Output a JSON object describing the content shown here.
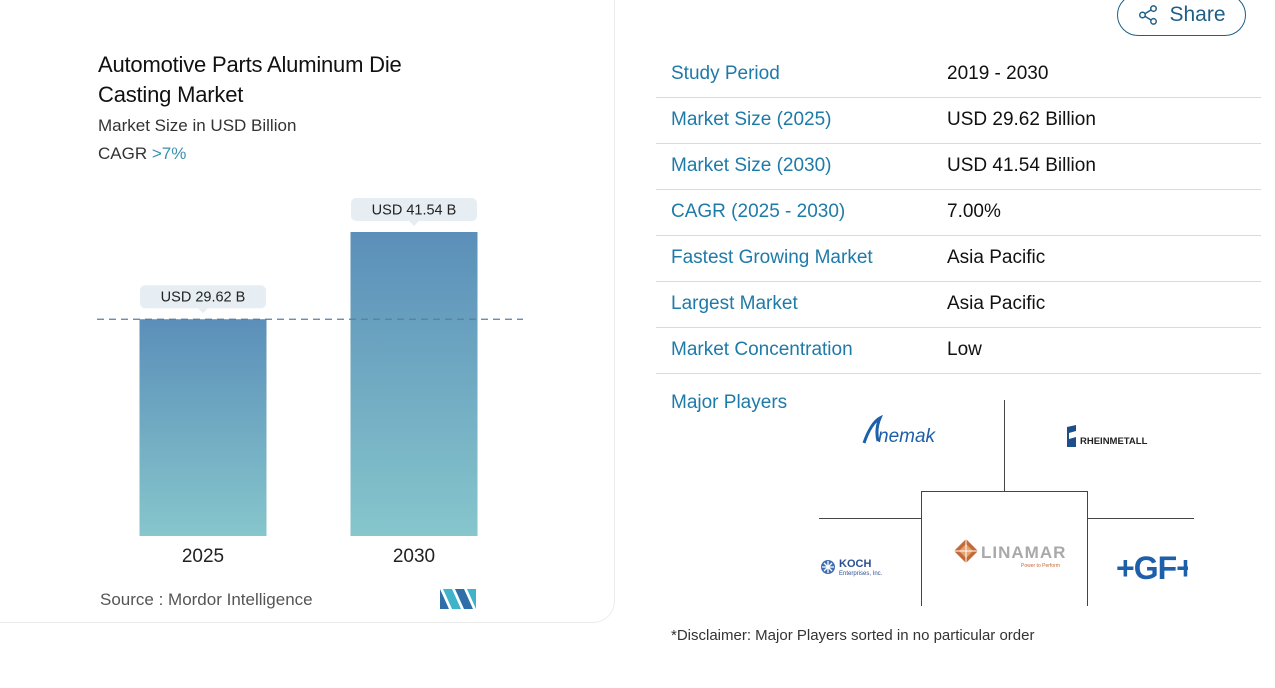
{
  "chart_card": {
    "title": "Automotive Parts Aluminum Die Casting Market",
    "subtitle": "Market Size in USD Billion",
    "cagr_label": "CAGR",
    "cagr_value": ">7%",
    "source": "Source :  Mordor Intelligence"
  },
  "chart_data": {
    "type": "bar",
    "categories": [
      "2025",
      "2030"
    ],
    "values": [
      29.62,
      41.54
    ],
    "data_labels": [
      "USD 29.62 B",
      "USD 41.54 B"
    ],
    "colors": {
      "bar_top": "#5b8fb9",
      "bar_bottom": "#86c6cc",
      "reference_line": "#5a7fa3",
      "label_bg": "#e6eef3"
    },
    "reference_line": "dashed line at 2025 value",
    "grid": false
  },
  "share_button": {
    "label": "Share",
    "icon": "share-icon"
  },
  "stats": [
    {
      "label": "Study Period",
      "value": "2019 - 2030"
    },
    {
      "label": "Market Size (2025)",
      "value": "USD 29.62 Billion"
    },
    {
      "label": "Market Size (2030)",
      "value": "USD 41.54 Billion"
    },
    {
      "label": "CAGR (2025 - 2030)",
      "value": "7.00%"
    },
    {
      "label": "Fastest Growing Market",
      "value": "Asia Pacific"
    },
    {
      "label": "Largest Market",
      "value": "Asia Pacific"
    },
    {
      "label": "Market Concentration",
      "value": "Low"
    }
  ],
  "major_players": {
    "label": "Major Players",
    "logos": [
      "nemak",
      "RHEINMETALL",
      "KOCH Enterprises, Inc.",
      "LINAMAR",
      "+GF+"
    ],
    "linamar_tagline": "Power to Perform",
    "disclaimer": "*Disclaimer: Major Players sorted in no particular order"
  },
  "accent_color": "#1e7aa8"
}
